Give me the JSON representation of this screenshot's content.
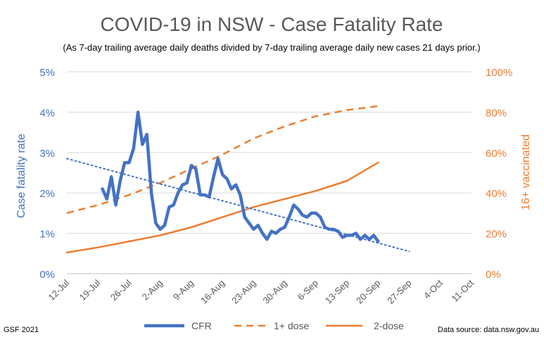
{
  "chart_data": {
    "type": "line",
    "title": "COVID-19 in NSW - Case Fatality Rate",
    "subtitle": "(As 7-day trailing average daily deaths divided by 7-day trailing average daily new cases 21 days prior.)",
    "ylabel": "Case fatality rate",
    "y2label": "16+ vaccinated",
    "ylim": [
      0,
      5
    ],
    "y2lim": [
      0,
      100
    ],
    "yticks": [
      "0%",
      "1%",
      "2%",
      "3%",
      "4%",
      "5%"
    ],
    "y2ticks": [
      "0%",
      "20%",
      "40%",
      "60%",
      "80%",
      "100%"
    ],
    "xticks": [
      "12-Jul",
      "19-Jul",
      "26-Jul",
      "2-Aug",
      "9-Aug",
      "16-Aug",
      "23-Aug",
      "30-Aug",
      "6-Sep",
      "13-Sep",
      "20-Sep",
      "27-Sep",
      "4-Oct",
      "11-Oct"
    ],
    "grid": true,
    "legend": "bottom",
    "footer_left": "GSF 2021",
    "footer_right": "Data source: data.nsw.gov.au",
    "colors": {
      "cfr": "#4472C4",
      "vax": "#ED7D31",
      "left_axis": "#4472C4",
      "right_axis": "#ED7D31"
    },
    "series": [
      {
        "name": "CFR",
        "axis": "left",
        "style": "solid-thick",
        "color": "#4472C4",
        "x": [
          20,
          21,
          22,
          23,
          24,
          25,
          26,
          27,
          28,
          29,
          30,
          31,
          32,
          33,
          34,
          35,
          36,
          37,
          38,
          39,
          40,
          41,
          42,
          43,
          44,
          45,
          46,
          47,
          48,
          49,
          50,
          51,
          52,
          53,
          54,
          55,
          56,
          57,
          58,
          59,
          60,
          61,
          62,
          63,
          64,
          65,
          66,
          67,
          68,
          69,
          70,
          71,
          72,
          73,
          74,
          75,
          76,
          77,
          78,
          79,
          80,
          81,
          82
        ],
        "values": [
          2.1,
          1.85,
          2.4,
          1.7,
          2.3,
          2.75,
          2.75,
          3.1,
          4.0,
          3.2,
          3.45,
          2.0,
          1.25,
          1.1,
          1.2,
          1.65,
          1.7,
          2.0,
          2.2,
          2.25,
          2.68,
          2.6,
          1.95,
          1.95,
          1.9,
          2.4,
          2.85,
          2.45,
          2.35,
          2.1,
          2.2,
          1.95,
          1.4,
          1.25,
          1.1,
          1.2,
          1.0,
          0.85,
          1.05,
          1.0,
          1.1,
          1.15,
          1.4,
          1.7,
          1.6,
          1.45,
          1.4,
          1.5,
          1.5,
          1.4,
          1.15,
          1.1,
          1.1,
          1.05,
          0.9,
          0.95,
          0.95,
          1.0,
          0.85,
          0.95,
          0.85,
          0.95,
          0.8
        ]
      },
      {
        "name": "1+ dose",
        "axis": "right",
        "style": "dashed",
        "color": "#ED7D31",
        "x": [
          12,
          19,
          26,
          33,
          40,
          47,
          54,
          61,
          68,
          75,
          82
        ],
        "values": [
          30,
          34,
          39,
          45,
          52,
          59,
          67,
          73,
          78,
          81,
          83
        ]
      },
      {
        "name": "2-dose",
        "axis": "right",
        "style": "solid",
        "color": "#ED7D31",
        "x": [
          12,
          19,
          26,
          33,
          40,
          47,
          54,
          61,
          68,
          75,
          82
        ],
        "values": [
          10.5,
          13,
          16,
          19,
          23,
          28,
          33,
          37,
          41,
          46,
          55
        ]
      },
      {
        "name": "",
        "axis": "left",
        "style": "dotted-trend",
        "color": "#4472C4",
        "x": [
          12,
          89
        ],
        "values": [
          2.85,
          0.55
        ]
      }
    ]
  }
}
